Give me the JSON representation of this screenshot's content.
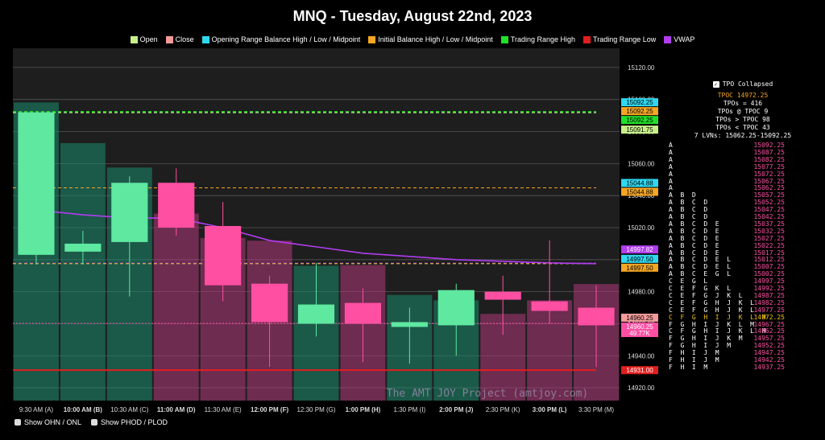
{
  "title": "MNQ - Tuesday, August 22nd, 2023",
  "legend": [
    {
      "label": "Open",
      "color": "#c8f08a"
    },
    {
      "label": "Close",
      "color": "#f59a9a"
    },
    {
      "label": "Opening Range Balance High / Low / Midpoint",
      "color": "#2fd8f0"
    },
    {
      "label": "Initial Balance High / Low / Midpoint",
      "color": "#f5a623"
    },
    {
      "label": "Trading Range High",
      "color": "#22e02a"
    },
    {
      "label": "Trading Range Low",
      "color": "#e01e1e"
    },
    {
      "label": "VWAP",
      "color": "#b23cf0"
    }
  ],
  "options": {
    "ohn_label": "Show OHN / ONL",
    "phod_label": "Show PHOD / PLOD"
  },
  "watermark": "The AMT JOY Project (amtjoy.com)",
  "tpo": {
    "collapsed_label": "TPO Collapsed",
    "tpoc_label": "TPOC 14972.25",
    "tpos": "TPOs = 416",
    "tpos_at": "TPOs @ TPOC 9",
    "tpos_above": "TPOs > TPOC 98",
    "tpos_below": "TPOs < TPOC 43",
    "lvns": "7 LVNs: 15062.25-15092.25",
    "poc_price": "14972.25",
    "rows": [
      {
        "price": "15092.25",
        "letters": "A"
      },
      {
        "price": "15087.25",
        "letters": "A"
      },
      {
        "price": "15082.25",
        "letters": "A"
      },
      {
        "price": "15077.25",
        "letters": "A"
      },
      {
        "price": "15072.25",
        "letters": "A"
      },
      {
        "price": "15067.25",
        "letters": "A"
      },
      {
        "price": "15062.25",
        "letters": "A"
      },
      {
        "price": "15057.25",
        "letters": "A  B  D"
      },
      {
        "price": "15052.25",
        "letters": "A  B  C  D"
      },
      {
        "price": "15047.25",
        "letters": "A  B  C  D"
      },
      {
        "price": "15042.25",
        "letters": "A  B  C  D"
      },
      {
        "price": "15037.25",
        "letters": "A  B  C  D  E"
      },
      {
        "price": "15032.25",
        "letters": "A  B  C  D  E"
      },
      {
        "price": "15027.25",
        "letters": "A  B  C  D  E"
      },
      {
        "price": "15022.25",
        "letters": "A  B  C  D  E"
      },
      {
        "price": "15017.25",
        "letters": "A  B  C  D  E"
      },
      {
        "price": "15012.25",
        "letters": "A  B  C  D  E  L"
      },
      {
        "price": "15007.25",
        "letters": "A  B  C  D  E  L"
      },
      {
        "price": "15002.25",
        "letters": "A  B  C  E  G  L"
      },
      {
        "price": "14997.25",
        "letters": "C  E  G  L"
      },
      {
        "price": "14992.25",
        "letters": "C  E  F  G  K  L"
      },
      {
        "price": "14987.25",
        "letters": "C  E  F  G  J  K  L"
      },
      {
        "price": "14982.25",
        "letters": "C  E  F  G  H  J  K  L"
      },
      {
        "price": "14977.25",
        "letters": "C  E  F  G  H  J  K  L"
      },
      {
        "price": "14972.25",
        "letters": "C  F  G  H  I  J  K  L  M"
      },
      {
        "price": "14967.25",
        "letters": "F  G  H  I  J  K  L  M"
      },
      {
        "price": "14962.25",
        "letters": "C  F  G  H  I  J  K  L  M"
      },
      {
        "price": "14957.25",
        "letters": "F  G  H  I  J  K  M"
      },
      {
        "price": "14952.25",
        "letters": "F  G  H  I  J  M"
      },
      {
        "price": "14947.25",
        "letters": "F  H  I  J  M"
      },
      {
        "price": "14942.25",
        "letters": "F  H  I  J  M"
      },
      {
        "price": "14937.25",
        "letters": "F  H  I  M"
      }
    ]
  },
  "chart_data": {
    "type": "candlestick",
    "title": "MNQ - Tuesday, August 22nd, 2023",
    "ylim": [
      14912,
      15132
    ],
    "y_ticks": [
      "15120.00",
      "15100.00",
      "15080.00",
      "15060.00",
      "15040.00",
      "15020.00",
      "15000.00",
      "14980.00",
      "14960.00",
      "14940.00",
      "14920.00"
    ],
    "y_tick_values": [
      15120,
      15100,
      15080,
      15060,
      15040,
      15020,
      15000,
      14980,
      14960,
      14940,
      14920
    ],
    "categories": [
      "9:30 AM (A)",
      "10:00 AM (B)",
      "10:30 AM (C)",
      "11:00 AM (D)",
      "11:30 AM (E)",
      "12:00 PM (F)",
      "12:30 PM (G)",
      "1:00 PM (H)",
      "1:30 PM (I)",
      "2:00 PM (J)",
      "2:30 PM (K)",
      "3:00 PM (L)",
      "3:30 PM (M)"
    ],
    "bold_categories": [
      false,
      true,
      false,
      true,
      false,
      true,
      false,
      true,
      false,
      true,
      false,
      true,
      false
    ],
    "candles": [
      {
        "open": 15003,
        "close": 15092,
        "high": 15092,
        "low": 14997
      },
      {
        "open": 15005,
        "close": 15010,
        "high": 15018,
        "low": 14997
      },
      {
        "open": 15011,
        "close": 15048,
        "high": 15052,
        "low": 14977
      },
      {
        "open": 15048,
        "close": 15020,
        "high": 15057,
        "low": 15015
      },
      {
        "open": 15021,
        "close": 14984,
        "high": 15036,
        "low": 14974
      },
      {
        "open": 14985,
        "close": 14961,
        "high": 14990,
        "low": 14933
      },
      {
        "open": 14960,
        "close": 14972,
        "high": 14998,
        "low": 14952
      },
      {
        "open": 14973,
        "close": 14960,
        "high": 14982,
        "low": 14936
      },
      {
        "open": 14958,
        "close": 14961,
        "high": 14970,
        "low": 14935
      },
      {
        "open": 14959,
        "close": 14981,
        "high": 14985,
        "low": 14940
      },
      {
        "open": 14980,
        "close": 14975,
        "high": 14990,
        "low": 14953
      },
      {
        "open": 14974,
        "close": 14968,
        "high": 15012,
        "low": 14960
      },
      {
        "open": 14970,
        "close": 14959,
        "high": 14984,
        "low": 14933
      }
    ],
    "volume_ylim": [
      0,
      130000
    ],
    "volume_label": "49.77K",
    "volume": [
      110000,
      95000,
      86000,
      69000,
      60000,
      59000,
      49770,
      50000,
      39000,
      37000,
      32000,
      37000,
      43000
    ],
    "vwap": [
      15031,
      15028,
      15026,
      15026,
      15020,
      15012,
      15008,
      15004,
      15002,
      15000,
      14999,
      14998,
      14997.5
    ],
    "levels": [
      {
        "name": "orb-high",
        "value": 15092.25,
        "label": "15092.25",
        "color": "#2fd8f0"
      },
      {
        "name": "ib-high",
        "value": 15092.25,
        "label": "15092.25",
        "color": "#f5a623"
      },
      {
        "name": "trading-range-high",
        "value": 15092.25,
        "label": "15092.25",
        "color": "#22e02a"
      },
      {
        "name": "open",
        "value": 15091.75,
        "label": "15091.75",
        "color": "#c8f08a"
      },
      {
        "name": "orb-mid",
        "value": 15044.88,
        "label": "15044.88",
        "color": "#2fd8f0"
      },
      {
        "name": "ib-mid",
        "value": 15044.88,
        "label": "15044.88",
        "color": "#f5a623"
      },
      {
        "name": "vwap-level",
        "value": 14997.82,
        "label": "14997.82",
        "color": "#b23cf0"
      },
      {
        "name": "orb-low",
        "value": 14997.5,
        "label": "14997.50",
        "color": "#2fd8f0"
      },
      {
        "name": "ib-low",
        "value": 14997.5,
        "label": "14997.50",
        "color": "#f5a623"
      },
      {
        "name": "close",
        "value": 14960.25,
        "label": "14960.25",
        "color": "#f59a9a"
      },
      {
        "name": "close-level",
        "value": 14960.25,
        "label": "14960.25",
        "color": "#ff4fa3"
      },
      {
        "name": "trading-range-low",
        "value": 14931.0,
        "label": "14931.00",
        "color": "#e01e1e"
      }
    ],
    "up_color": "#5ee8a0",
    "down_color": "#ff4fa3"
  }
}
